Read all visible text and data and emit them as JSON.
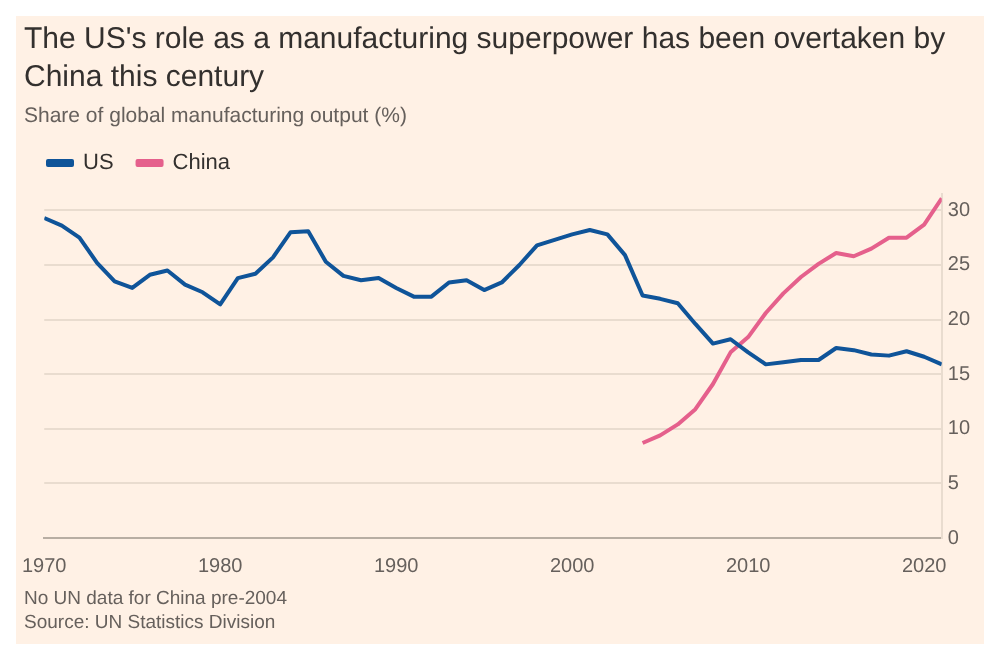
{
  "chart_data": {
    "type": "line",
    "title": "The US's role as a manufacturing superpower has been overtaken by China this century",
    "subtitle": "Share of global manufacturing output (%)",
    "annotations": [
      "No UN data for China pre-2004",
      "Source: UN Statistics Division"
    ],
    "series": [
      {
        "name": "US",
        "color": "#0f5499",
        "x": [
          1970,
          1971,
          1972,
          1973,
          1974,
          1975,
          1976,
          1977,
          1978,
          1979,
          1980,
          1981,
          1982,
          1983,
          1984,
          1985,
          1986,
          1987,
          1988,
          1989,
          1990,
          1991,
          1992,
          1993,
          1994,
          1995,
          1996,
          1997,
          1998,
          1999,
          2000,
          2001,
          2002,
          2003,
          2004,
          2005,
          2006,
          2007,
          2008,
          2009,
          2010,
          2011,
          2012,
          2013,
          2014,
          2015,
          2016,
          2017,
          2018,
          2019,
          2020,
          2021
        ],
        "values": [
          29.3,
          28.6,
          27.5,
          25.2,
          23.5,
          22.9,
          24.1,
          24.5,
          23.2,
          22.5,
          21.4,
          23.8,
          24.2,
          25.7,
          28.0,
          28.1,
          25.3,
          24.0,
          23.6,
          23.8,
          22.9,
          22.1,
          22.1,
          23.4,
          23.6,
          22.7,
          23.4,
          25.0,
          26.8,
          27.3,
          27.8,
          28.2,
          27.8,
          25.9,
          22.2,
          21.9,
          21.5,
          19.6,
          17.8,
          18.2,
          17.0,
          15.9,
          16.1,
          16.3,
          16.3,
          17.4,
          17.2,
          16.8,
          16.7,
          17.1,
          16.6,
          15.9
        ]
      },
      {
        "name": "China",
        "color": "#e5608c",
        "x": [
          2004,
          2005,
          2006,
          2007,
          2008,
          2009,
          2010,
          2011,
          2012,
          2013,
          2014,
          2015,
          2016,
          2017,
          2018,
          2019,
          2020,
          2021
        ],
        "values": [
          8.7,
          9.4,
          10.4,
          11.8,
          14.1,
          17.0,
          18.4,
          20.6,
          22.4,
          23.9,
          25.1,
          26.1,
          25.8,
          26.5,
          27.5,
          27.5,
          28.7,
          31.1
        ]
      }
    ],
    "xlim": [
      1970,
      2021
    ],
    "xticks": [
      1970,
      1980,
      1990,
      2000,
      2010,
      2020
    ],
    "ylim": [
      0,
      31.5
    ],
    "yticks": [
      0,
      5,
      10,
      15,
      20,
      25,
      30
    ],
    "grid": "y",
    "legend": "top left",
    "marker": "none",
    "line_style": "solid"
  }
}
